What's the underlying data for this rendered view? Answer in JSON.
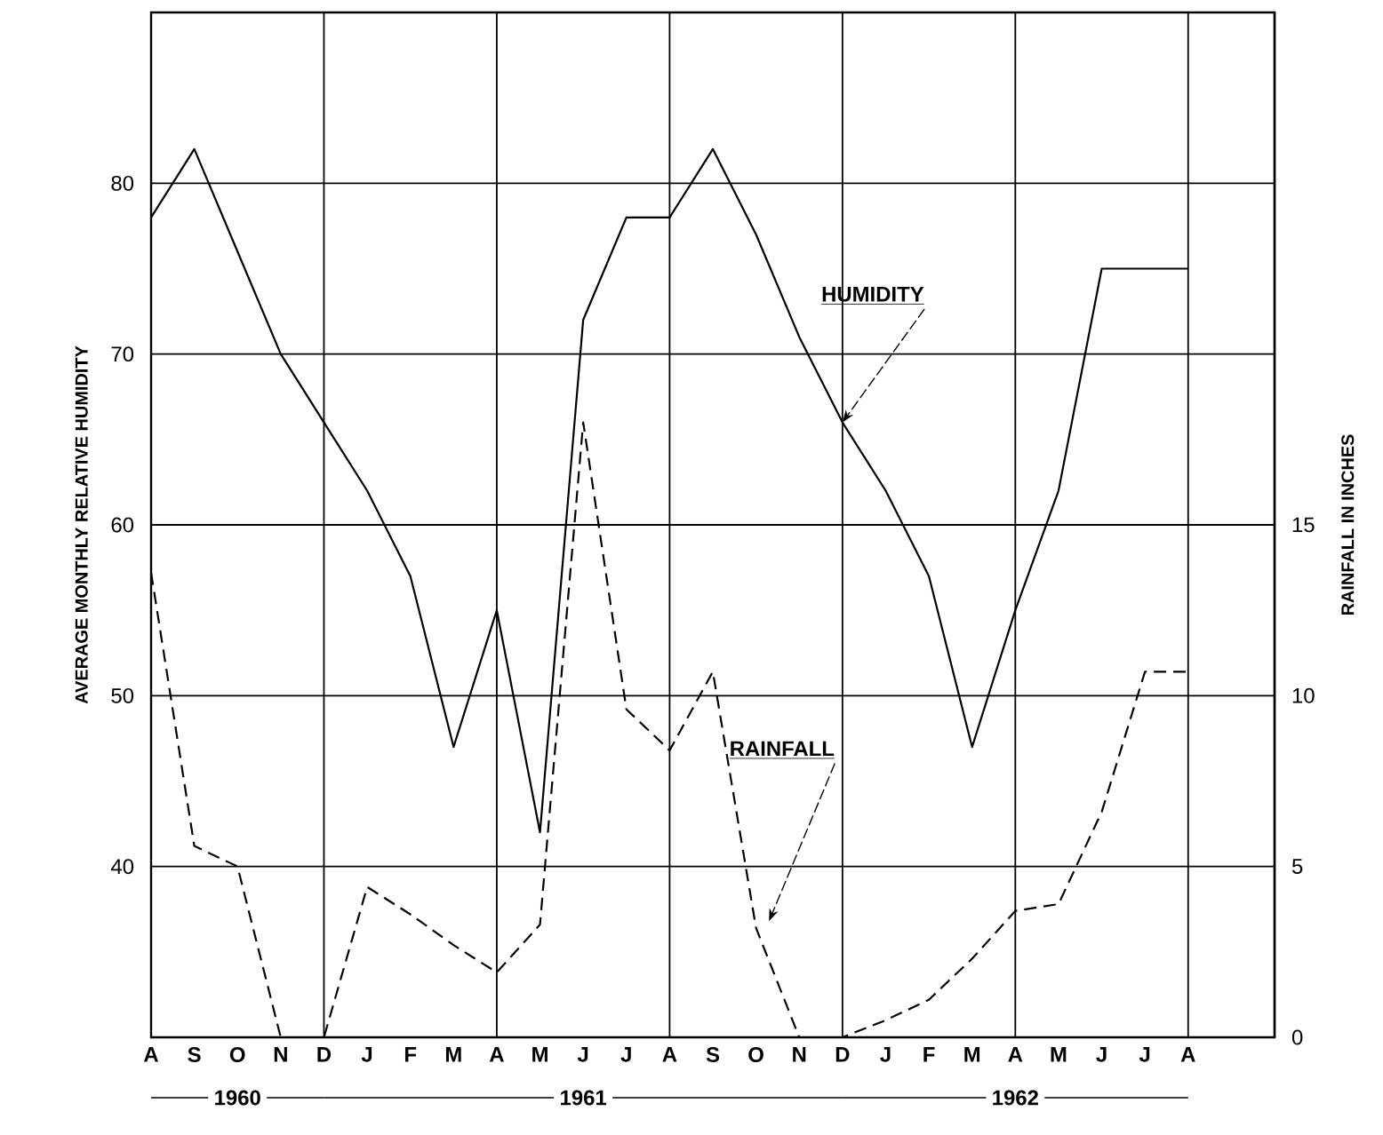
{
  "chart_data": {
    "type": "line",
    "ylabel": "AVERAGE MONTHLY RELATIVE HUMIDITY",
    "y2label": "RAINFALL IN INCHES",
    "categories": [
      "A",
      "S",
      "O",
      "N",
      "D",
      "J",
      "F",
      "M",
      "A",
      "M",
      "J",
      "J",
      "A",
      "S",
      "O",
      "N",
      "D",
      "J",
      "F",
      "M",
      "A",
      "M",
      "J",
      "J",
      "A"
    ],
    "series": [
      {
        "name": "HUMIDITY",
        "color": "#000000",
        "line_style": "solid",
        "values": [
          78,
          82,
          76,
          70,
          66,
          62,
          57,
          47,
          55,
          42,
          72,
          78,
          78,
          82,
          77,
          71,
          66,
          62,
          57,
          47,
          55,
          62,
          75,
          75,
          75
        ]
      },
      {
        "name": "RAINFALL",
        "color": "#000000",
        "line_style": "dashed",
        "axis": "y2",
        "values": [
          13.6,
          5.6,
          5.0,
          0,
          0,
          4.4,
          3.6,
          2.7,
          1.9,
          3.3,
          18,
          9.6,
          8.4,
          10.7,
          3.2,
          0,
          0,
          0.5,
          1.1,
          2.3,
          3.7,
          3.9,
          6.6,
          10.7,
          10.7
        ]
      }
    ],
    "ylim": [
      30,
      90
    ],
    "yticks": [
      40,
      50,
      60,
      70,
      80
    ],
    "y2lim": [
      0,
      30
    ],
    "y2ticks": [
      0,
      5,
      10,
      15
    ],
    "grid": true,
    "legend": false,
    "marker": "none",
    "annotations": [
      "1960",
      "1961",
      "1962"
    ]
  }
}
